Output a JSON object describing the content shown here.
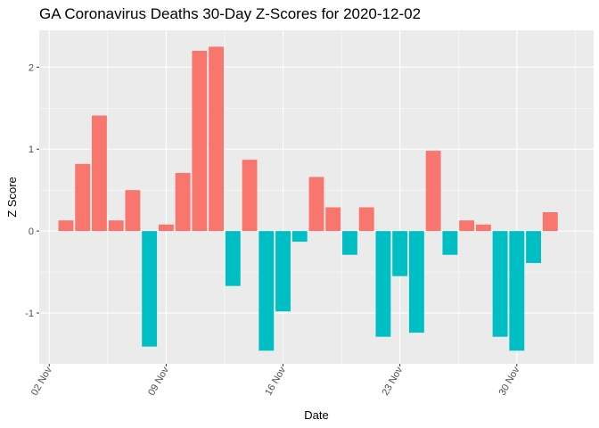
{
  "chart_data": {
    "type": "bar",
    "title": "GA Coronavirus Deaths 30-Day Z-Scores for 2020-12-02",
    "xlabel": "Date",
    "ylabel": "Z Score",
    "ylim": [
      -1.62,
      2.45
    ],
    "x_range_days": [
      -0.6,
      32.6
    ],
    "y_ticks": [
      -1,
      0,
      1,
      2
    ],
    "x_ticks": [
      {
        "day": 0,
        "label": "02 Nov"
      },
      {
        "day": 7,
        "label": "09 Nov"
      },
      {
        "day": 14,
        "label": "16 Nov"
      },
      {
        "day": 21,
        "label": "23 Nov"
      },
      {
        "day": 28,
        "label": "30 Nov"
      }
    ],
    "categories": [
      "03 Nov",
      "04 Nov",
      "05 Nov",
      "06 Nov",
      "07 Nov",
      "08 Nov",
      "09 Nov",
      "10 Nov",
      "11 Nov",
      "12 Nov",
      "13 Nov",
      "14 Nov",
      "15 Nov",
      "16 Nov",
      "17 Nov",
      "18 Nov",
      "19 Nov",
      "20 Nov",
      "21 Nov",
      "22 Nov",
      "23 Nov",
      "24 Nov",
      "25 Nov",
      "26 Nov",
      "27 Nov",
      "28 Nov",
      "29 Nov",
      "30 Nov",
      "01 Dec",
      "02 Dec"
    ],
    "days": [
      1,
      2,
      3,
      4,
      5,
      6,
      7,
      8,
      9,
      10,
      11,
      12,
      13,
      14,
      15,
      16,
      17,
      18,
      19,
      20,
      21,
      22,
      23,
      24,
      25,
      26,
      27,
      28,
      29,
      30
    ],
    "values": [
      0.13,
      0.82,
      1.41,
      0.13,
      0.5,
      -1.41,
      0.08,
      0.71,
      2.2,
      2.25,
      -0.67,
      0.87,
      -1.46,
      -0.98,
      -0.13,
      0.66,
      0.29,
      -0.29,
      0.29,
      -1.29,
      -0.55,
      -1.24,
      0.98,
      -0.29,
      0.13,
      0.08,
      -1.29,
      -1.46,
      -0.39,
      0.23
    ],
    "colors": {
      "positive": "#F8766D",
      "negative": "#00BFC4",
      "panel": "#EBEBEB",
      "grid": "#FFFFFF"
    }
  }
}
